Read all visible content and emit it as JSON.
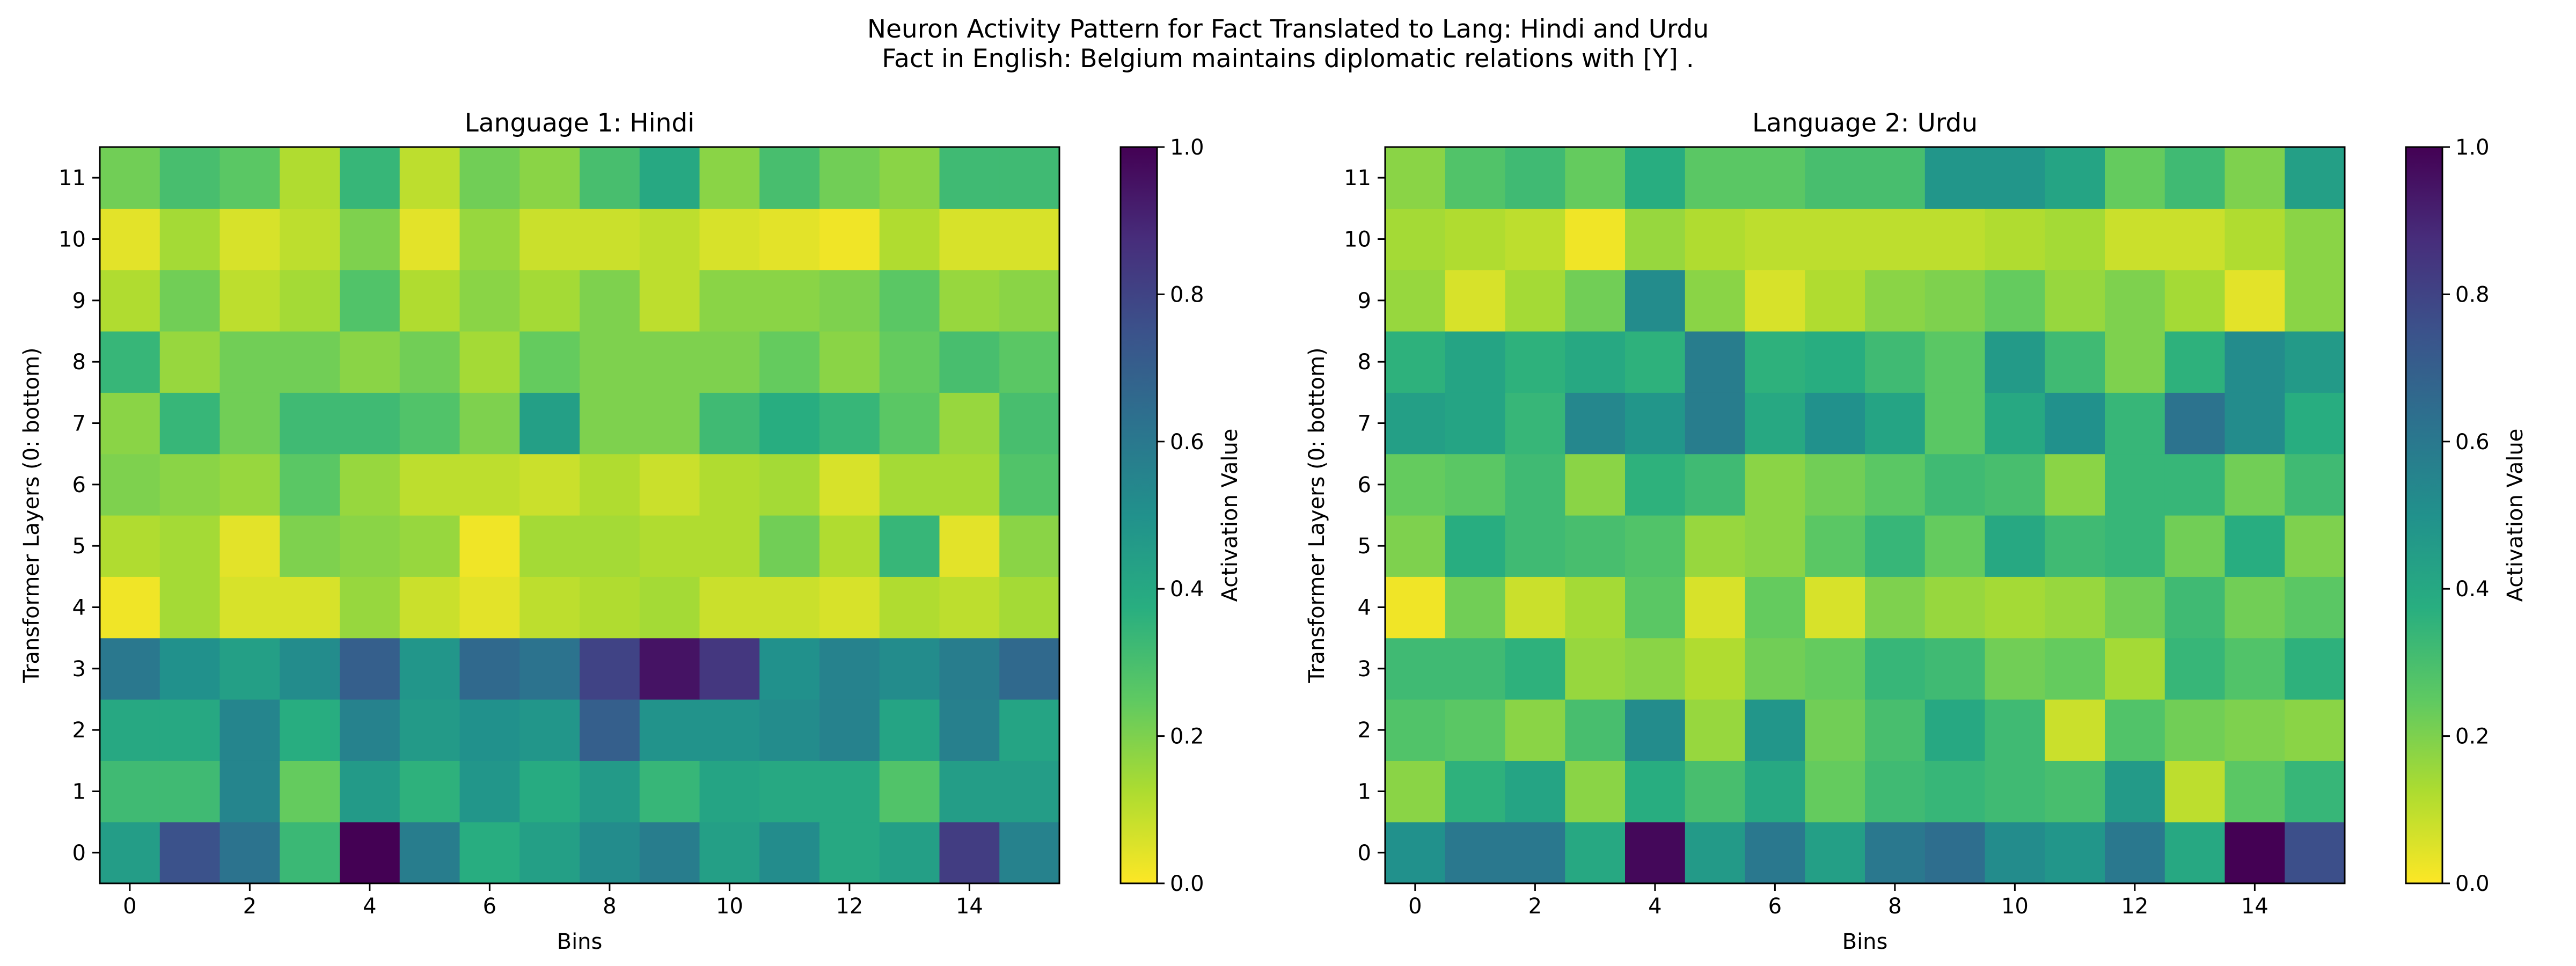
{
  "figure": {
    "title_line1": "Neuron Activity Pattern for Fact Translated to Lang: Hindi and Urdu",
    "title_line2": "Fact in English: Belgium maintains diplomatic relations with [Y] ."
  },
  "chart_data": [
    {
      "type": "heatmap",
      "title": "Language 1: Hindi",
      "xlabel": "Bins",
      "ylabel": "Transformer Layers (0: bottom)",
      "colorbar_label": "Activation Value",
      "colormap": "viridis_r",
      "vmin": 0.0,
      "vmax": 1.0,
      "x_ticks": [
        0,
        2,
        4,
        6,
        8,
        10,
        12,
        14
      ],
      "y_ticks": [
        0,
        1,
        2,
        3,
        4,
        5,
        6,
        7,
        8,
        9,
        10,
        11
      ],
      "colorbar_ticks": [
        "0.0",
        "0.2",
        "0.4",
        "0.6",
        "0.8",
        "1.0"
      ],
      "rows": [
        [
          0.45,
          0.75,
          0.62,
          0.33,
          1.0,
          0.58,
          0.38,
          0.44,
          0.52,
          0.58,
          0.44,
          0.52,
          0.4,
          0.44,
          0.82,
          0.56
        ],
        [
          0.32,
          0.32,
          0.55,
          0.24,
          0.46,
          0.36,
          0.48,
          0.39,
          0.46,
          0.34,
          0.42,
          0.4,
          0.4,
          0.28,
          0.45,
          0.45
        ],
        [
          0.4,
          0.4,
          0.55,
          0.38,
          0.56,
          0.46,
          0.5,
          0.48,
          0.7,
          0.49,
          0.49,
          0.52,
          0.56,
          0.42,
          0.57,
          0.42
        ],
        [
          0.6,
          0.5,
          0.44,
          0.52,
          0.7,
          0.48,
          0.66,
          0.62,
          0.8,
          0.95,
          0.84,
          0.5,
          0.56,
          0.52,
          0.58,
          0.66
        ],
        [
          0.02,
          0.14,
          0.06,
          0.06,
          0.16,
          0.08,
          0.04,
          0.1,
          0.12,
          0.14,
          0.08,
          0.08,
          0.06,
          0.12,
          0.1,
          0.14
        ],
        [
          0.12,
          0.14,
          0.04,
          0.2,
          0.18,
          0.16,
          0.02,
          0.14,
          0.14,
          0.12,
          0.12,
          0.22,
          0.12,
          0.34,
          0.04,
          0.18
        ],
        [
          0.2,
          0.18,
          0.16,
          0.26,
          0.16,
          0.1,
          0.1,
          0.08,
          0.12,
          0.08,
          0.12,
          0.14,
          0.06,
          0.14,
          0.14,
          0.28
        ],
        [
          0.18,
          0.34,
          0.22,
          0.32,
          0.32,
          0.28,
          0.2,
          0.44,
          0.2,
          0.2,
          0.32,
          0.38,
          0.34,
          0.26,
          0.16,
          0.3
        ],
        [
          0.34,
          0.16,
          0.22,
          0.22,
          0.18,
          0.22,
          0.14,
          0.24,
          0.2,
          0.2,
          0.2,
          0.24,
          0.18,
          0.24,
          0.3,
          0.26
        ],
        [
          0.12,
          0.22,
          0.1,
          0.14,
          0.28,
          0.12,
          0.18,
          0.14,
          0.2,
          0.1,
          0.18,
          0.18,
          0.2,
          0.26,
          0.16,
          0.18
        ],
        [
          0.04,
          0.14,
          0.06,
          0.1,
          0.2,
          0.04,
          0.16,
          0.08,
          0.08,
          0.1,
          0.06,
          0.04,
          0.02,
          0.12,
          0.06,
          0.06
        ],
        [
          0.22,
          0.3,
          0.26,
          0.12,
          0.34,
          0.1,
          0.22,
          0.18,
          0.3,
          0.4,
          0.18,
          0.3,
          0.22,
          0.18,
          0.32,
          0.32
        ]
      ]
    },
    {
      "type": "heatmap",
      "title": "Language 2: Urdu",
      "xlabel": "Bins",
      "ylabel": "Transformer Layers (0: bottom)",
      "colorbar_label": "Activation Value",
      "colormap": "viridis_r",
      "vmin": 0.0,
      "vmax": 1.0,
      "x_ticks": [
        0,
        2,
        4,
        6,
        8,
        10,
        12,
        14
      ],
      "y_ticks": [
        0,
        1,
        2,
        3,
        4,
        5,
        6,
        7,
        8,
        9,
        10,
        11
      ],
      "colorbar_ticks": [
        "0.0",
        "0.2",
        "0.4",
        "0.6",
        "0.8",
        "1.0"
      ],
      "rows": [
        [
          0.5,
          0.6,
          0.6,
          0.4,
          0.98,
          0.46,
          0.6,
          0.44,
          0.6,
          0.64,
          0.52,
          0.48,
          0.6,
          0.4,
          1.0,
          0.76
        ],
        [
          0.18,
          0.36,
          0.42,
          0.18,
          0.38,
          0.3,
          0.4,
          0.24,
          0.32,
          0.34,
          0.32,
          0.3,
          0.46,
          0.1,
          0.26,
          0.34
        ],
        [
          0.28,
          0.26,
          0.18,
          0.3,
          0.52,
          0.16,
          0.48,
          0.22,
          0.3,
          0.4,
          0.32,
          0.08,
          0.28,
          0.22,
          0.2,
          0.18
        ],
        [
          0.32,
          0.32,
          0.36,
          0.16,
          0.18,
          0.12,
          0.22,
          0.24,
          0.34,
          0.32,
          0.22,
          0.24,
          0.14,
          0.34,
          0.28,
          0.36
        ],
        [
          0.02,
          0.22,
          0.08,
          0.14,
          0.26,
          0.06,
          0.24,
          0.06,
          0.2,
          0.16,
          0.14,
          0.16,
          0.22,
          0.32,
          0.22,
          0.26
        ],
        [
          0.2,
          0.38,
          0.32,
          0.3,
          0.28,
          0.16,
          0.18,
          0.26,
          0.34,
          0.24,
          0.4,
          0.32,
          0.34,
          0.22,
          0.38,
          0.2
        ],
        [
          0.24,
          0.26,
          0.32,
          0.18,
          0.36,
          0.32,
          0.18,
          0.22,
          0.26,
          0.32,
          0.3,
          0.18,
          0.34,
          0.34,
          0.22,
          0.32
        ],
        [
          0.44,
          0.42,
          0.34,
          0.54,
          0.48,
          0.58,
          0.4,
          0.5,
          0.42,
          0.26,
          0.4,
          0.5,
          0.34,
          0.62,
          0.52,
          0.38
        ],
        [
          0.36,
          0.42,
          0.36,
          0.4,
          0.36,
          0.58,
          0.36,
          0.38,
          0.32,
          0.26,
          0.46,
          0.32,
          0.2,
          0.36,
          0.52,
          0.46
        ],
        [
          0.16,
          0.06,
          0.14,
          0.22,
          0.52,
          0.18,
          0.06,
          0.12,
          0.18,
          0.2,
          0.24,
          0.16,
          0.2,
          0.14,
          0.04,
          0.18
        ],
        [
          0.14,
          0.12,
          0.1,
          0.02,
          0.16,
          0.12,
          0.1,
          0.1,
          0.1,
          0.1,
          0.12,
          0.14,
          0.08,
          0.08,
          0.12,
          0.18
        ],
        [
          0.18,
          0.28,
          0.32,
          0.24,
          0.38,
          0.26,
          0.26,
          0.3,
          0.3,
          0.48,
          0.48,
          0.42,
          0.24,
          0.32,
          0.2,
          0.44
        ]
      ]
    }
  ]
}
